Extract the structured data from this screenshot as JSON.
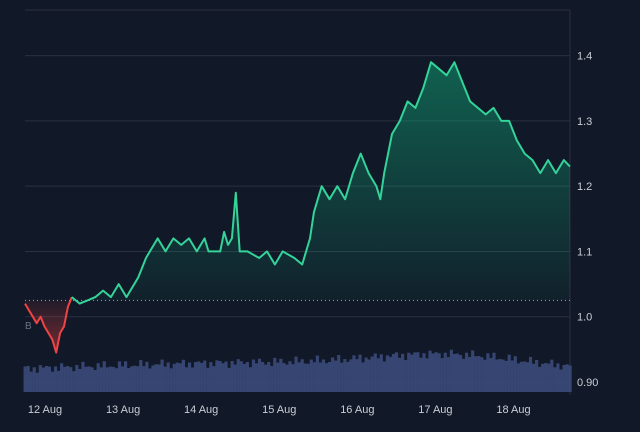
{
  "chart_data": {
    "type": "area",
    "baseline_value": 1.025,
    "colors": {
      "background": "#111827",
      "grid": "#2a3140",
      "up_line": "#34d399",
      "down_line": "#ef4444",
      "volume": "#3b4a7a",
      "baseline": "#9ca3af",
      "label": "#c9ced6"
    },
    "x_tick_labels": [
      "12 Aug",
      "13 Aug",
      "14 Aug",
      "15 Aug",
      "16 Aug",
      "17 Aug",
      "18 Aug"
    ],
    "y_ticks": [
      {
        "value": 1.4,
        "label": "1.4"
      },
      {
        "value": 1.3,
        "label": "1.3"
      },
      {
        "value": 1.2,
        "label": "1.2"
      },
      {
        "value": 1.1,
        "label": "1.1"
      },
      {
        "value": 1.0,
        "label": "1.0"
      },
      {
        "value": 0.9,
        "label": "0.90"
      }
    ],
    "ylim": [
      0.88,
      1.47
    ],
    "xlim": [
      0,
      6.98
    ],
    "volume_label": "B",
    "grid": true,
    "series": [
      {
        "values": [
          [
            0.0,
            1.02
          ],
          [
            0.05,
            1.01
          ],
          [
            0.1,
            1.0
          ],
          [
            0.15,
            0.99
          ],
          [
            0.2,
            1.0
          ],
          [
            0.25,
            0.985
          ],
          [
            0.3,
            0.975
          ],
          [
            0.35,
            0.965
          ],
          [
            0.4,
            0.945
          ],
          [
            0.45,
            0.975
          ],
          [
            0.5,
            0.985
          ],
          [
            0.55,
            1.015
          ],
          [
            0.6,
            1.03
          ],
          [
            0.7,
            1.02
          ],
          [
            0.8,
            1.025
          ],
          [
            0.9,
            1.03
          ],
          [
            1.0,
            1.04
          ],
          [
            1.1,
            1.03
          ],
          [
            1.2,
            1.05
          ],
          [
            1.3,
            1.03
          ],
          [
            1.45,
            1.06
          ],
          [
            1.55,
            1.09
          ],
          [
            1.6,
            1.1
          ],
          [
            1.7,
            1.12
          ],
          [
            1.8,
            1.1
          ],
          [
            1.9,
            1.12
          ],
          [
            2.0,
            1.11
          ],
          [
            2.1,
            1.12
          ],
          [
            2.2,
            1.1
          ],
          [
            2.3,
            1.12
          ],
          [
            2.35,
            1.1
          ],
          [
            2.5,
            1.1
          ],
          [
            2.55,
            1.13
          ],
          [
            2.6,
            1.11
          ],
          [
            2.65,
            1.12
          ],
          [
            2.7,
            1.19
          ],
          [
            2.75,
            1.1
          ],
          [
            2.85,
            1.1
          ],
          [
            3.0,
            1.09
          ],
          [
            3.1,
            1.1
          ],
          [
            3.2,
            1.08
          ],
          [
            3.3,
            1.1
          ],
          [
            3.45,
            1.09
          ],
          [
            3.55,
            1.08
          ],
          [
            3.6,
            1.1
          ],
          [
            3.65,
            1.12
          ],
          [
            3.7,
            1.16
          ],
          [
            3.75,
            1.18
          ],
          [
            3.8,
            1.2
          ],
          [
            3.9,
            1.18
          ],
          [
            4.0,
            1.2
          ],
          [
            4.1,
            1.18
          ],
          [
            4.2,
            1.22
          ],
          [
            4.3,
            1.25
          ],
          [
            4.4,
            1.22
          ],
          [
            4.5,
            1.2
          ],
          [
            4.55,
            1.18
          ],
          [
            4.6,
            1.22
          ],
          [
            4.7,
            1.28
          ],
          [
            4.8,
            1.3
          ],
          [
            4.9,
            1.33
          ],
          [
            5.0,
            1.32
          ],
          [
            5.1,
            1.35
          ],
          [
            5.2,
            1.39
          ],
          [
            5.3,
            1.38
          ],
          [
            5.4,
            1.37
          ],
          [
            5.5,
            1.39
          ],
          [
            5.6,
            1.36
          ],
          [
            5.7,
            1.33
          ],
          [
            5.8,
            1.32
          ],
          [
            5.9,
            1.31
          ],
          [
            6.0,
            1.32
          ],
          [
            6.1,
            1.3
          ],
          [
            6.2,
            1.3
          ],
          [
            6.3,
            1.27
          ],
          [
            6.4,
            1.25
          ],
          [
            6.5,
            1.24
          ],
          [
            6.6,
            1.22
          ],
          [
            6.7,
            1.24
          ],
          [
            6.8,
            1.22
          ],
          [
            6.9,
            1.24
          ],
          [
            6.98,
            1.23
          ]
        ]
      }
    ]
  }
}
